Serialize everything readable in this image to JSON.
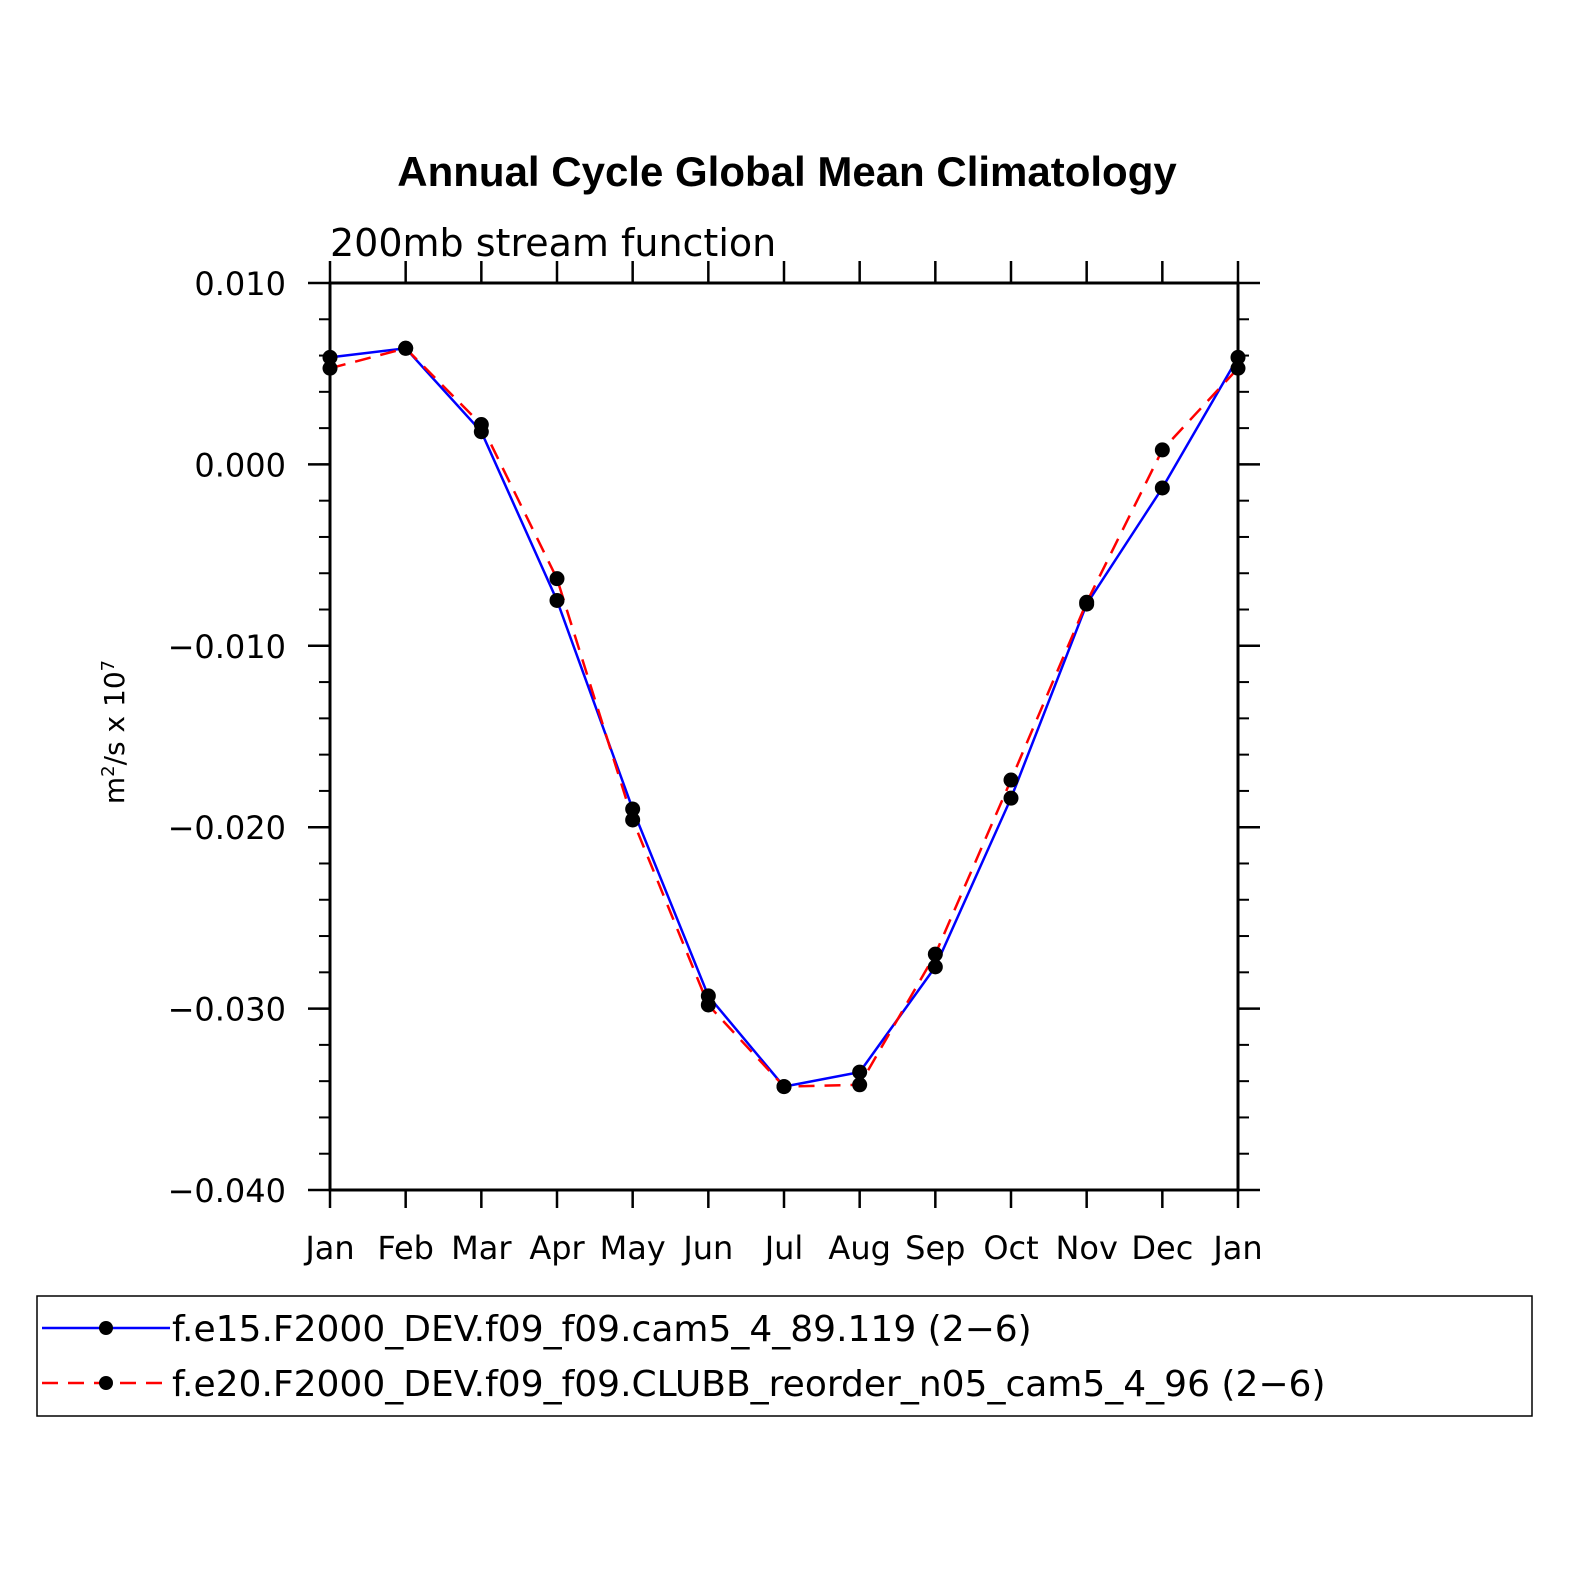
{
  "chart_data": {
    "type": "line",
    "title": "Annual Cycle Global Mean Climatology",
    "subtitle": "200mb stream function",
    "ylabel": {
      "base": "m",
      "base_sup": "2",
      "middle": "/s x 10",
      "exp_sup": "7"
    },
    "xlabel": "",
    "categories": [
      "Jan",
      "Feb",
      "Mar",
      "Apr",
      "May",
      "Jun",
      "Jul",
      "Aug",
      "Sep",
      "Oct",
      "Nov",
      "Dec",
      "Jan"
    ],
    "ylim": [
      -0.04,
      0.01
    ],
    "yticks": [
      0.01,
      0.0,
      -0.01,
      -0.02,
      -0.03,
      -0.04
    ],
    "ytick_labels": [
      "0.010",
      "0.000",
      "−0.010",
      "−0.020",
      "−0.030",
      "−0.040"
    ],
    "y_minor_step": 0.002,
    "grid": false,
    "legend_position": "bottom",
    "series": [
      {
        "name": "f.e15.F2000_DEV.f09_f09.cam5_4_89.119 (2−6)",
        "color": "#0000ff",
        "dash": "solid",
        "values": [
          0.0059,
          0.0064,
          0.0018,
          -0.0075,
          -0.019,
          -0.0293,
          -0.0343,
          -0.0335,
          -0.0277,
          -0.0184,
          -0.0077,
          -0.0013,
          0.0059
        ]
      },
      {
        "name": "f.e20.F2000_DEV.f09_f09.CLUBB_reorder_n05_cam5_4_96 (2−6)",
        "color": "#ff0000",
        "dash": "dashed",
        "values": [
          0.0053,
          0.0064,
          0.0022,
          -0.0063,
          -0.0196,
          -0.0298,
          -0.0343,
          -0.0342,
          -0.027,
          -0.0174,
          -0.0076,
          0.0008,
          0.0053
        ]
      }
    ]
  }
}
